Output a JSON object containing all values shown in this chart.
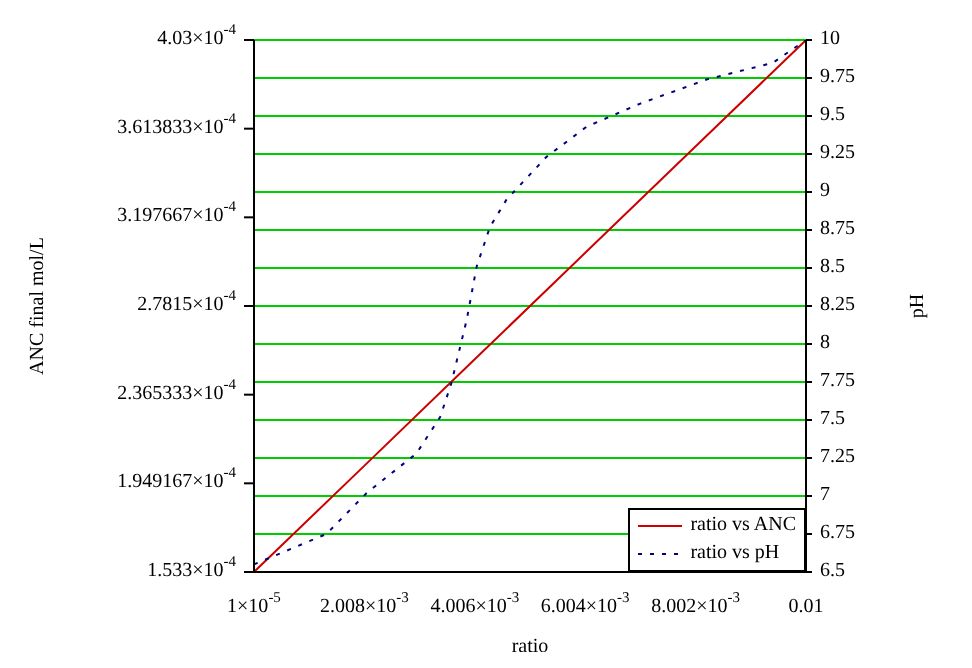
{
  "chart_data": {
    "type": "line",
    "xlabel": "ratio",
    "ylabel": "ANC final mol/L",
    "y2label": "pH",
    "xlim": [
      1e-05,
      0.01
    ],
    "xticks": [
      {
        "value": 1e-05,
        "label": "1×10$^{-5}$"
      },
      {
        "value": 0.002008,
        "label": "2.008×10$^{-3}$"
      },
      {
        "value": 0.004006,
        "label": "4.006×10$^{-3}$"
      },
      {
        "value": 0.006004,
        "label": "6.004×10$^{-3}$"
      },
      {
        "value": 0.008002,
        "label": "8.002×10$^{-3}$"
      },
      0.01
    ],
    "ylim": [
      0.0001533,
      0.000403
    ],
    "yticks": [
      {
        "value": 0.0001533,
        "label": "1.533×10$^{-4}$"
      },
      {
        "value": 0.0001949167,
        "label": "1.949167×10$^{-4}$"
      },
      {
        "value": 0.0002365333,
        "label": "2.365333×10$^{-4}$"
      },
      {
        "value": 0.00027815,
        "label": "2.7815×10$^{-4}$"
      },
      {
        "value": 0.0003197667,
        "label": "3.197667×10$^{-4}$"
      },
      {
        "value": 0.0003613833,
        "label": "3.613833×10$^{-4}$"
      },
      {
        "value": 0.000403,
        "label": "4.03×10$^{-4}$"
      }
    ],
    "y2lim": [
      6.5,
      10
    ],
    "y2ticks": [
      6.5,
      6.75,
      7,
      7.25,
      7.5,
      7.75,
      8,
      8.25,
      8.5,
      8.75,
      9,
      9.25,
      9.5,
      9.75,
      10
    ],
    "grid": true,
    "legend": "bottom right",
    "series": [
      {
        "name": "ratio vs ANC",
        "color": "#cc0000",
        "line_style": "solid",
        "x": [
          1e-05,
          0.002,
          0.004,
          0.006,
          0.008,
          0.01
        ],
        "values": [
          0.0001533,
          0.000203,
          0.000253,
          0.000303,
          0.000353,
          0.000403
        ]
      },
      {
        "name": "ratio vs pH",
        "color": "#000080",
        "line_style": "dotted",
        "axis": "y2",
        "x": [
          1e-05,
          0.00132,
          0.00205,
          0.00295,
          0.00338,
          0.00358,
          0.00386,
          0.00404,
          0.00428,
          0.00458,
          0.0053,
          0.00603,
          0.00699,
          0.0082,
          0.0094,
          0.01
        ],
        "values": [
          6.55,
          6.75,
          7.02,
          7.28,
          7.52,
          7.74,
          8.16,
          8.51,
          8.77,
          8.95,
          9.23,
          9.43,
          9.58,
          9.74,
          9.85,
          10
        ]
      }
    ]
  }
}
